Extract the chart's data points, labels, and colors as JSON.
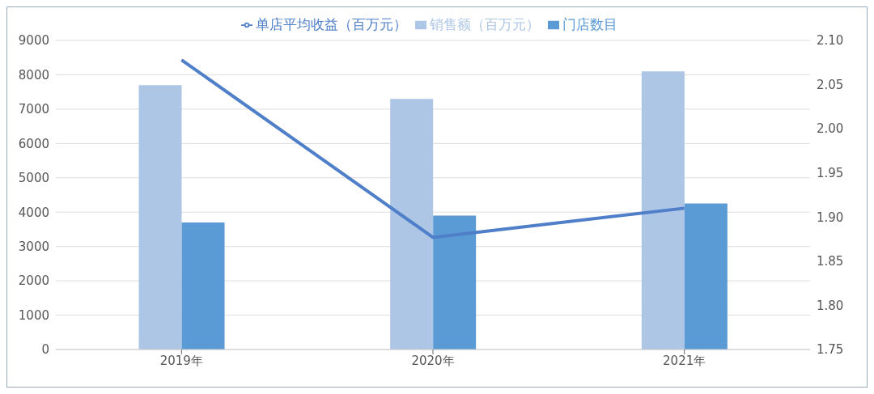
{
  "chart_data": {
    "type": "bar",
    "categories": [
      "2019年",
      "2020年",
      "2021年"
    ],
    "series": [
      {
        "name": "销售额（百万元）",
        "color": "#adc6e6",
        "values": [
          7700,
          7300,
          8100
        ]
      },
      {
        "name": "门店数目",
        "color": "#5b9bd5",
        "values": [
          3700,
          3900,
          4250
        ]
      },
      {
        "name": "单店平均收益（百万元）",
        "type": "line",
        "axis": "y2",
        "color": "#4f7fc8",
        "values": [
          2.078,
          1.877,
          1.91
        ],
        "marker": "none"
      }
    ],
    "ylim": [
      0,
      9000
    ],
    "yticks": [
      0,
      1000,
      2000,
      3000,
      4000,
      5000,
      6000,
      7000,
      8000,
      9000
    ],
    "y2lim": [
      1.75,
      2.1
    ],
    "y2ticks": [
      {
        "value": 1.75,
        "label": "1.75"
      },
      {
        "value": 1.8,
        "label": "1.80"
      },
      {
        "value": 1.85,
        "label": "1.85"
      },
      {
        "value": 1.9,
        "label": "1.90"
      },
      {
        "value": 1.95,
        "label": "1.95"
      },
      {
        "value": 2.0,
        "label": "2.00"
      },
      {
        "value": 2.05,
        "label": "2.05"
      },
      {
        "value": 2.1,
        "label": "2.10"
      }
    ],
    "grid": "y",
    "legend": "top"
  }
}
